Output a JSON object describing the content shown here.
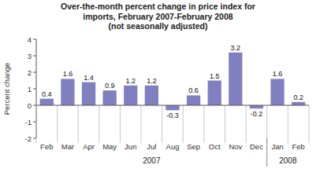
{
  "chart_data": {
    "type": "bar",
    "title": "Over-the-month percent change in price index for\nimports, February 2007-February 2008\n(not seasonally adjusted)",
    "categories": [
      "Feb",
      "Mar",
      "Apr",
      "May",
      "Jun",
      "Jul",
      "Aug",
      "Sep",
      "Oct",
      "Nov",
      "Dec",
      "Jan",
      "Feb"
    ],
    "values": [
      0.4,
      1.6,
      1.4,
      0.9,
      1.2,
      1.2,
      -0.3,
      0.6,
      1.5,
      3.2,
      -0.2,
      1.6,
      0.2
    ],
    "color": "#8080c0",
    "ylim": [
      -2.0,
      4.0
    ],
    "yticks": [
      -2,
      -1,
      0,
      1,
      2,
      3,
      4
    ],
    "ylabel": "Percent change",
    "data_labels": true,
    "annotations": [
      {
        "text": "2007",
        "from": 0,
        "to": 10
      },
      {
        "text": "2008",
        "from": 11,
        "to": 12
      }
    ]
  }
}
